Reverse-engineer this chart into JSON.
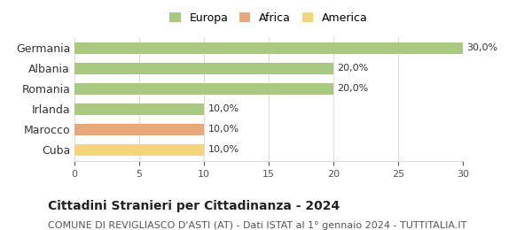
{
  "categories": [
    "Cuba",
    "Marocco",
    "Irlanda",
    "Romania",
    "Albania",
    "Germania"
  ],
  "values": [
    10.0,
    10.0,
    10.0,
    20.0,
    20.0,
    30.0
  ],
  "bar_colors": [
    "#f5d57a",
    "#e8a87c",
    "#a8c97f",
    "#a8c97f",
    "#a8c97f",
    "#a8c97f"
  ],
  "bar_labels": [
    "10,0%",
    "10,0%",
    "10,0%",
    "20,0%",
    "20,0%",
    "30,0%"
  ],
  "legend": [
    {
      "label": "Europa",
      "color": "#a8c97f"
    },
    {
      "label": "Africa",
      "color": "#e8a87c"
    },
    {
      "label": "America",
      "color": "#f5d57a"
    }
  ],
  "xlim": [
    0,
    30
  ],
  "xticks": [
    0,
    5,
    10,
    15,
    20,
    25,
    30
  ],
  "title": "Cittadini Stranieri per Cittadinanza - 2024",
  "subtitle": "COMUNE DI REVIGLIASCO D'ASTI (AT) - Dati ISTAT al 1° gennaio 2024 - TUTTITALIA.IT",
  "title_fontsize": 10,
  "subtitle_fontsize": 8,
  "background_color": "#ffffff",
  "grid_color": "#dddddd",
  "bar_label_fontsize": 8,
  "ytick_fontsize": 9,
  "xtick_fontsize": 8
}
